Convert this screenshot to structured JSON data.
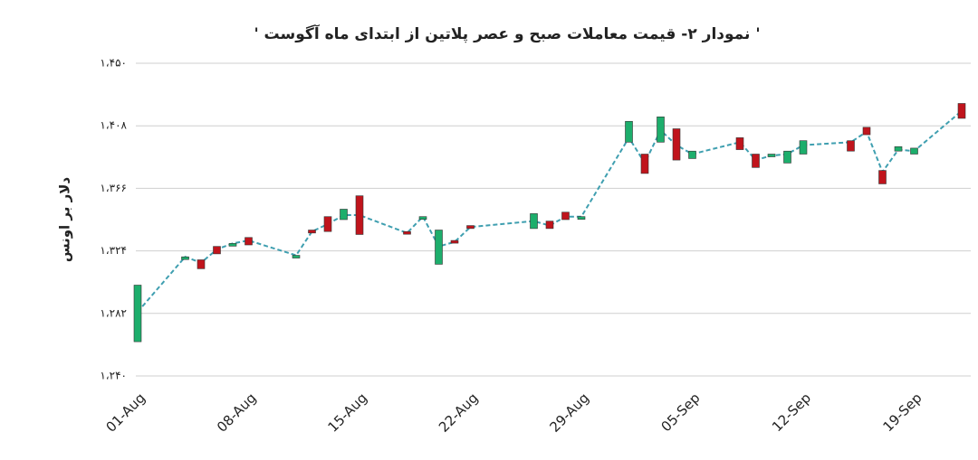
{
  "chart_data": {
    "type": "candlestick",
    "title": "'  نمودار ۲- قیمت معاملات صبح و عصر پلاتین از ابتدای ماه آگوست  '",
    "ylabel": "دلار بر اونس",
    "x": [
      "01-Aug",
      "04-Aug",
      "05-Aug",
      "06-Aug",
      "07-Aug",
      "08-Aug",
      "11-Aug",
      "12-Aug",
      "13-Aug",
      "14-Aug",
      "15-Aug",
      "18-Aug",
      "19-Aug",
      "20-Aug",
      "21-Aug",
      "22-Aug",
      "26-Aug",
      "27-Aug",
      "28-Aug",
      "29-Aug",
      "01-Sep",
      "02-Sep",
      "03-Sep",
      "04-Sep",
      "05-Sep",
      "08-Sep",
      "09-Sep",
      "10-Sep",
      "11-Sep",
      "12-Sep",
      "15-Sep",
      "16-Sep",
      "17-Sep",
      "18-Sep",
      "19-Sep",
      "22-Sep"
    ],
    "open": [
      1263,
      1319,
      1318,
      1327,
      1328,
      1333,
      1320,
      1338,
      1347,
      1345,
      1361,
      1337,
      1346,
      1315,
      1331,
      1341,
      1339,
      1344,
      1350,
      1346,
      1397,
      1389,
      1397,
      1406,
      1386,
      1400,
      1389,
      1388,
      1383,
      1389,
      1398,
      1407,
      1378,
      1391,
      1389,
      1423
    ],
    "close": [
      1301,
      1320,
      1312,
      1322,
      1329,
      1328,
      1321,
      1336,
      1337,
      1352,
      1335,
      1336,
      1347,
      1338,
      1330,
      1339,
      1349,
      1339,
      1345,
      1347,
      1411,
      1376,
      1414,
      1385,
      1391,
      1392,
      1380,
      1389,
      1391,
      1398,
      1391,
      1402,
      1369,
      1394,
      1393,
      1413
    ],
    "line": [
      1283,
      1320,
      1316,
      1325,
      1329,
      1331,
      1321,
      1337,
      1342,
      1348,
      1348,
      1336,
      1347,
      1327,
      1330,
      1340,
      1344,
      1341,
      1347,
      1347,
      1400,
      1383,
      1405,
      1395,
      1389,
      1397,
      1385,
      1388,
      1389,
      1395,
      1397,
      1404,
      1377,
      1392,
      1391,
      1418
    ],
    "up_color": "#1dae6c",
    "down_color": "#c0141c",
    "line_color": "#3f9fb0",
    "xlim": [
      "01-Aug",
      "22-Sep"
    ],
    "xticks": [
      "01-Aug",
      "08-Aug",
      "15-Aug",
      "22-Aug",
      "29-Aug",
      "05-Sep",
      "12-Sep",
      "19-Sep"
    ],
    "ylim": [
      1240,
      1450
    ],
    "yticks": [
      {
        "value": 1240,
        "label": "۱،۲۴۰"
      },
      {
        "value": 1282,
        "label": "۱،۲۸۲"
      },
      {
        "value": 1324,
        "label": "۱،۳۲۴"
      },
      {
        "value": 1366,
        "label": "۱،۳۶۶"
      },
      {
        "value": 1408,
        "label": "۱،۴۰۸"
      },
      {
        "value": 1450,
        "label": "۱،۴۵۰"
      }
    ],
    "grid": true
  }
}
